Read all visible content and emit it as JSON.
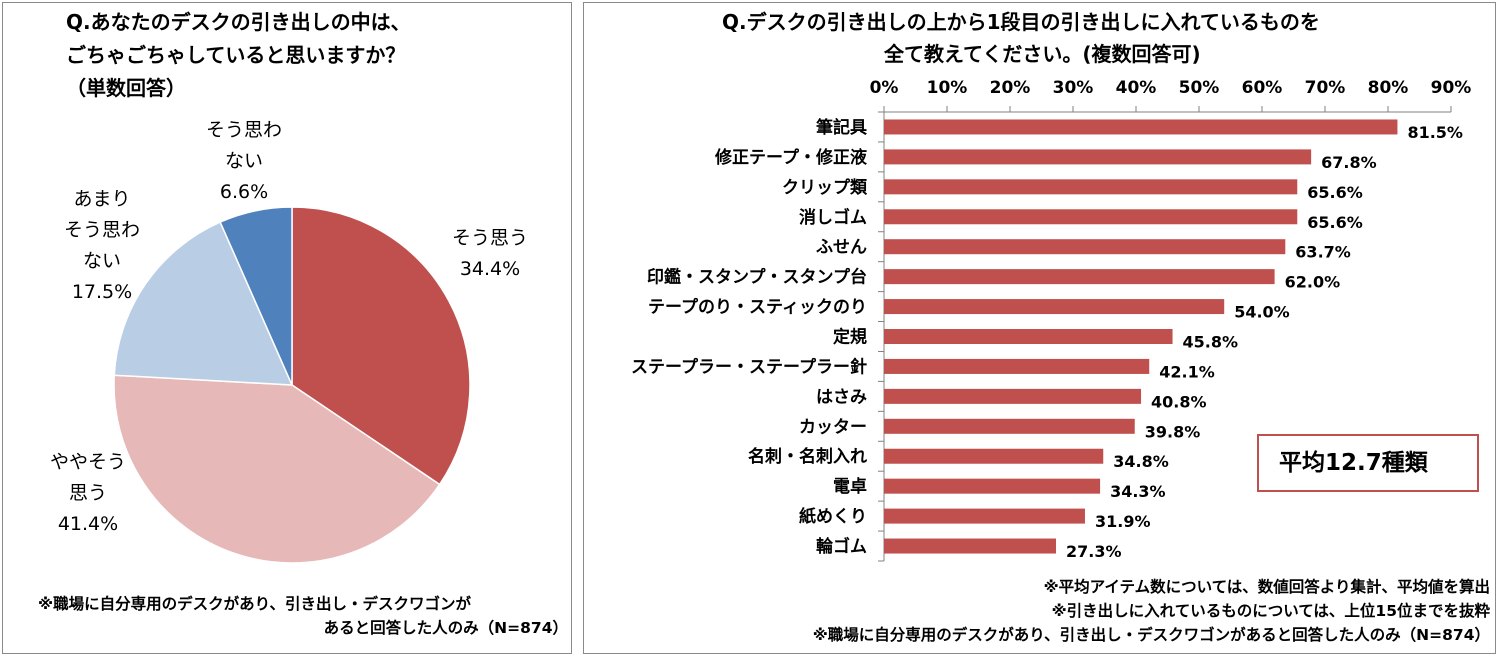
{
  "colors": {
    "bar": "#c0504d",
    "pie": [
      "#c0504d",
      "#e6b9b8",
      "#b9cde5",
      "#4f81bd"
    ]
  },
  "pie_panel": {
    "title_lines": [
      "Q.あなたのデスクの引き出しの中は、",
      "ごちゃごちゃしていると思いますか？",
      "（単数回答）"
    ],
    "note_lines": [
      "※職場に自分専用のデスクがあり、引き出し・デスクワゴンが",
      "あると回答した人のみ（N=874）"
    ]
  },
  "bar_panel": {
    "title_lines": [
      "Q.デスクの引き出しの上から1段目の引き出しに入れているものを",
      "全て教えてください。(複数回答可)"
    ],
    "average_label": "平均12.7種類",
    "note_lines": [
      "※平均アイテム数については、数値回答より集計、平均値を算出",
      "※引き出しに入れているものについては、上位15位までを抜粋",
      "※職場に自分専用のデスクがあり、引き出し・デスクワゴンがあると回答した人のみ（N=874）"
    ]
  },
  "chart_data": [
    {
      "type": "pie",
      "slices": [
        {
          "label_lines": [
            "そう思う"
          ],
          "value": 34.4,
          "value_text": "34.4%"
        },
        {
          "label_lines": [
            "ややそう",
            "思う"
          ],
          "value": 41.4,
          "value_text": "41.4%"
        },
        {
          "label_lines": [
            "あまり",
            "そう思わ",
            "ない"
          ],
          "value": 17.5,
          "value_text": "17.5%"
        },
        {
          "label_lines": [
            "そう思わ",
            "ない"
          ],
          "value": 6.6,
          "value_text": "6.6%"
        }
      ]
    },
    {
      "type": "bar",
      "orientation": "horizontal",
      "categories": [
        "筆記具",
        "修正テープ・修正液",
        "クリップ類",
        "消しゴム",
        "ふせん",
        "印鑑・スタンプ・スタンプ台",
        "テープのり・スティックのり",
        "定規",
        "ステープラー・ステープラー針",
        "はさみ",
        "カッター",
        "名刺・名刺入れ",
        "電卓",
        "紙めくり",
        "輪ゴム"
      ],
      "values": [
        81.5,
        67.8,
        65.6,
        65.6,
        63.7,
        62.0,
        54.0,
        45.8,
        42.1,
        40.8,
        39.8,
        34.8,
        34.3,
        31.9,
        27.3
      ],
      "value_labels": [
        "81.5%",
        "67.8%",
        "65.6%",
        "65.6%",
        "63.7%",
        "62.0%",
        "54.0%",
        "45.8%",
        "42.1%",
        "40.8%",
        "39.8%",
        "34.8%",
        "34.3%",
        "31.9%",
        "27.3%"
      ],
      "xlim": [
        0,
        90
      ],
      "ticks": [
        0,
        10,
        20,
        30,
        40,
        50,
        60,
        70,
        80,
        90
      ],
      "tick_labels": [
        "0%",
        "10%",
        "20%",
        "30%",
        "40%",
        "50%",
        "60%",
        "70%",
        "80%",
        "90%"
      ],
      "axis_position": "top",
      "grid": false
    }
  ]
}
